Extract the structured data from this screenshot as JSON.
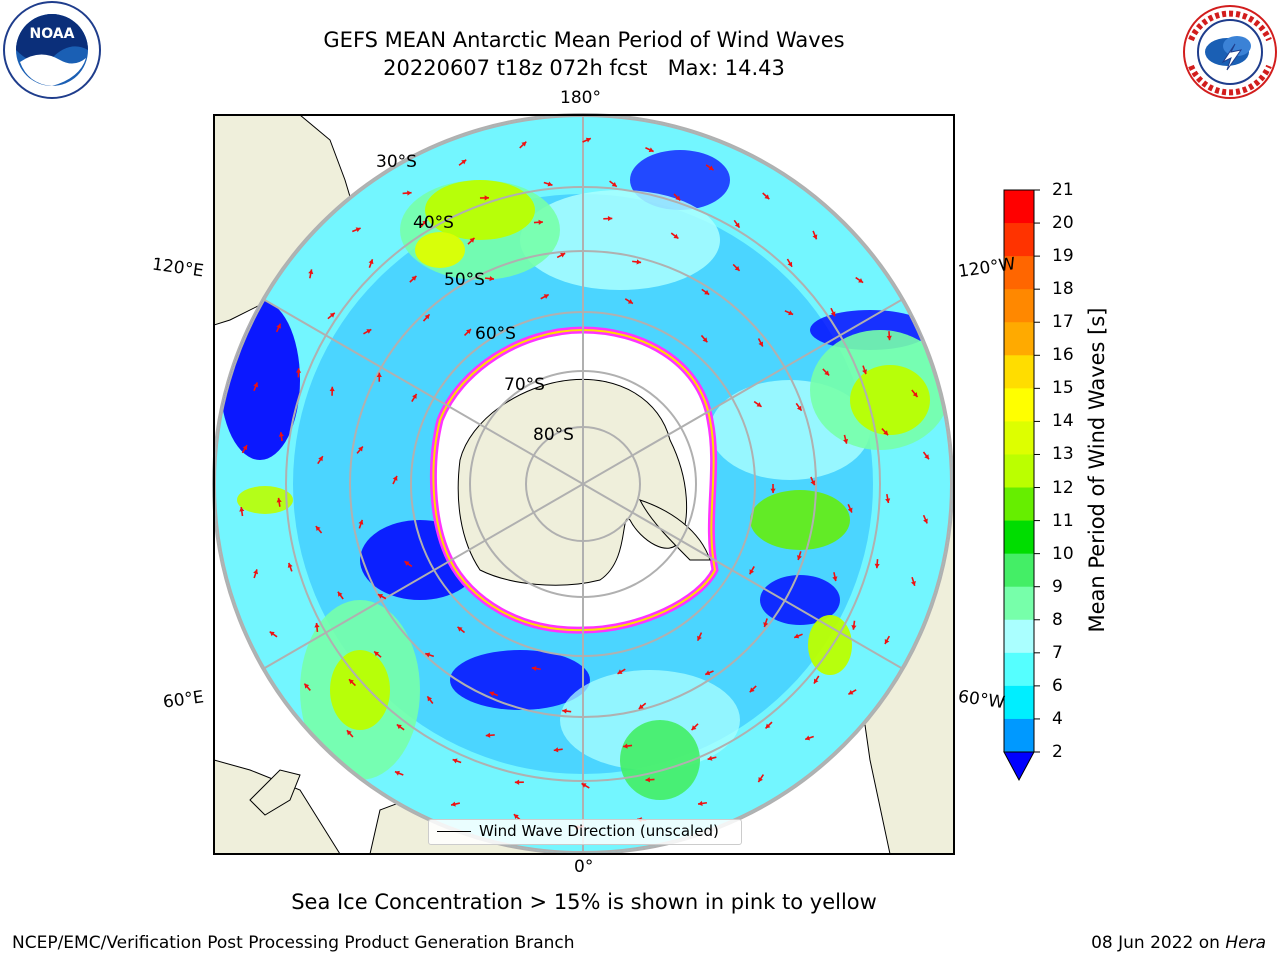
{
  "header": {
    "title_line1": "GEFS MEAN Antarctic Mean Period of Wind Waves",
    "title_line2": "20220607 t18z 072h fcst   Max: 14.43"
  },
  "logos": {
    "noaa": {
      "text": "NOAA",
      "ring_text": "NATIONAL OCEANIC AND ATMOSPHERIC ADMINISTRATION",
      "bottom_text": "U.S. DEPARTMENT OF COMMERCE"
    },
    "nws": {
      "text": "NATIONAL WEATHER SERVICE"
    }
  },
  "map": {
    "projection": "south-polar-stereographic",
    "longitude_labels": {
      "top": "180°",
      "bottom": "0°",
      "left_upper": "120°E",
      "left_lower": "60°E",
      "right_upper": "120°W",
      "right_lower": "60°W"
    },
    "latitude_labels": [
      "30°S",
      "40°S",
      "50°S",
      "60°S",
      "70°S",
      "80°S"
    ],
    "legend": "Wind Wave Direction (unscaled)",
    "colors": {
      "land": "#efefdb",
      "ocean_low": "#0000ff",
      "ice_edge": "#ff33ff"
    }
  },
  "colorbar": {
    "label": "Mean Period of Wind Waves [s]",
    "ticks": [
      "21",
      "20",
      "19",
      "18",
      "17",
      "16",
      "15",
      "14",
      "13",
      "12",
      "11",
      "10",
      "9",
      "8",
      "7",
      "6",
      "4",
      "2"
    ],
    "colors": [
      "#ff0000",
      "#ff3300",
      "#ff6600",
      "#ff8800",
      "#ffaa00",
      "#ffdd00",
      "#ffff00",
      "#ddff00",
      "#bbff00",
      "#66ee00",
      "#00dd00",
      "#44ee66",
      "#77ffaa",
      "#aaffff",
      "#55ffff",
      "#00eeff",
      "#0099ff",
      "#0044ff"
    ],
    "extend_color": "#0000ff"
  },
  "subtitle": "Sea Ice Concentration > 15% is shown in pink to yellow",
  "footer": {
    "left": "NCEP/EMC/Verification Post Processing Product Generation Branch",
    "right_date": "08 Jun 2022 on ",
    "right_machine": "Hera"
  }
}
